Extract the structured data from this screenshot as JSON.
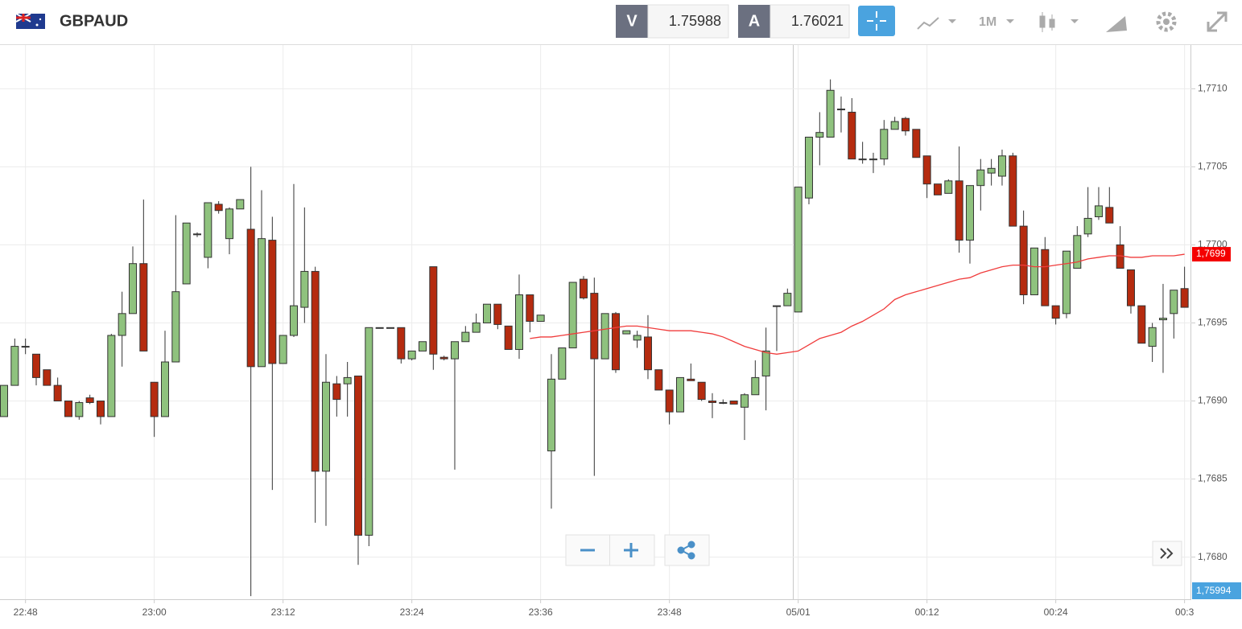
{
  "toolbar": {
    "symbol": "GBPAUD",
    "sell_label": "V",
    "sell_price": "1.75988",
    "buy_label": "A",
    "buy_price": "1.76021",
    "interval": "1M"
  },
  "chart_data": {
    "type": "candlestick",
    "categories": [
      null,
      null,
      "22:48",
      null,
      null,
      null,
      null,
      null,
      null,
      null,
      null,
      null,
      null,
      null,
      "23:00",
      null,
      null,
      null,
      null,
      null,
      null,
      null,
      null,
      null,
      null,
      null,
      "23:12",
      null,
      null,
      null,
      null,
      null,
      null,
      null,
      null,
      null,
      null,
      null,
      "23:24",
      null,
      null,
      null,
      null,
      null,
      null,
      null,
      null,
      null,
      null,
      null,
      "23:36",
      null,
      null,
      null,
      null,
      null,
      null,
      null,
      null,
      null,
      null,
      null,
      "23:48",
      null,
      null,
      null,
      null,
      null,
      null,
      null,
      null,
      null,
      null,
      null,
      "05/01",
      null,
      null,
      null,
      null,
      null,
      null,
      null,
      null,
      null,
      null,
      null,
      "00:12",
      null,
      null,
      null,
      null,
      null,
      null,
      null,
      null,
      null,
      null,
      null,
      "00:24",
      null,
      null,
      null,
      null,
      null,
      null,
      null,
      null,
      null,
      null,
      null,
      "00:3"
    ],
    "open": [
      1.7689,
      1.7691,
      1.76935,
      1.7693,
      1.7692,
      1.7691,
      1.769,
      1.7689,
      1.76902,
      1.769,
      1.7689,
      1.76942,
      1.76956,
      1.76988,
      1.76912,
      1.7689,
      1.76925,
      1.76975,
      1.77007,
      1.76992,
      1.77026,
      1.77004,
      1.77023,
      1.7701,
      1.76922,
      1.77003,
      1.76924,
      1.76942,
      1.7696,
      1.76983,
      1.76855,
      1.76911,
      1.76911,
      1.76916,
      1.76814,
      1.76947,
      1.76947,
      1.76947,
      1.76927,
      1.76932,
      1.76986,
      1.76928,
      1.76927,
      1.76938,
      1.76944,
      1.7695,
      1.76962,
      1.76948,
      1.76933,
      1.76968,
      1.76951,
      1.76868,
      1.76914,
      1.76934,
      1.76978,
      1.76969,
      1.76927,
      1.76956,
      1.76943,
      1.76939,
      1.76941,
      1.7692,
      1.76907,
      1.76893,
      1.76914,
      1.76912,
      1.769,
      1.76899,
      1.769,
      1.76896,
      1.76904,
      1.76916,
      1.76961,
      1.76961,
      1.76957,
      1.7703,
      1.77069,
      1.77069,
      1.77087,
      1.77085,
      1.77055,
      1.77055,
      1.77055,
      1.77074,
      1.77081,
      1.77074,
      1.77057,
      1.77039,
      1.77033,
      1.77041,
      1.77003,
      1.77038,
      1.77046,
      1.77044,
      1.77057,
      1.77012,
      1.76968,
      1.76997,
      1.76961,
      1.76956,
      1.76985,
      1.77007,
      1.77018,
      1.77024,
      1.77,
      1.76984,
      1.76961,
      1.76935,
      1.76952,
      1.76956,
      1.76972
    ],
    "high": [
      1.7691,
      1.7694,
      1.7694,
      1.7693,
      1.7692,
      1.76915,
      1.769,
      1.769,
      1.76904,
      1.769,
      1.76943,
      1.7697,
      1.76999,
      1.77029,
      1.76912,
      1.76945,
      1.77019,
      1.77014,
      1.77008,
      1.77027,
      1.77028,
      1.77024,
      1.77029,
      1.7705,
      1.77035,
      1.77018,
      1.76942,
      1.77039,
      1.77024,
      1.76986,
      1.7693,
      1.76916,
      1.76925,
      1.76916,
      1.76947,
      1.76947,
      1.76947,
      1.76947,
      1.76932,
      1.76938,
      1.76986,
      1.76929,
      1.76938,
      1.76948,
      1.76956,
      1.76962,
      1.76962,
      1.76948,
      1.76981,
      1.76968,
      1.76955,
      1.7693,
      1.76934,
      1.76976,
      1.7698,
      1.76979,
      1.76956,
      1.76957,
      1.76945,
      1.76945,
      1.76955,
      1.7692,
      1.76907,
      1.76915,
      1.76924,
      1.76912,
      1.76905,
      1.76901,
      1.769,
      1.76905,
      1.76926,
      1.76947,
      1.76961,
      1.76972,
      1.77037,
      1.77069,
      1.77085,
      1.77106,
      1.77095,
      1.77094,
      1.77066,
      1.77059,
      1.7708,
      1.77082,
      1.77082,
      1.77074,
      1.77057,
      1.77039,
      1.77042,
      1.77063,
      1.77038,
      1.77055,
      1.77055,
      1.77061,
      1.77059,
      1.77022,
      1.76998,
      1.77005,
      1.76961,
      1.76996,
      1.77012,
      1.77037,
      1.77037,
      1.77037,
      1.77012,
      1.76984,
      1.76961,
      1.7695,
      1.76975,
      1.76971,
      1.76986
    ],
    "low": [
      1.7689,
      1.7691,
      1.7693,
      1.7691,
      1.7691,
      1.769,
      1.7689,
      1.76888,
      1.76898,
      1.76885,
      1.7689,
      1.76922,
      1.76956,
      1.76932,
      1.76877,
      1.7689,
      1.76925,
      1.76975,
      1.77005,
      1.76985,
      1.7702,
      1.76994,
      1.77023,
      1.76775,
      1.76922,
      1.76843,
      1.76924,
      1.76941,
      1.7695,
      1.76822,
      1.7682,
      1.7689,
      1.7689,
      1.76795,
      1.76807,
      1.76947,
      1.76947,
      1.76924,
      1.76926,
      1.76932,
      1.7692,
      1.76926,
      1.76856,
      1.76938,
      1.76944,
      1.7695,
      1.76946,
      1.76933,
      1.76927,
      1.76944,
      1.76951,
      1.76831,
      1.76914,
      1.76934,
      1.76965,
      1.76852,
      1.76927,
      1.76918,
      1.76943,
      1.76934,
      1.76914,
      1.76907,
      1.76885,
      1.76893,
      1.76913,
      1.769,
      1.76889,
      1.76898,
      1.76898,
      1.76875,
      1.76904,
      1.76894,
      1.76932,
      1.76961,
      1.76957,
      1.77026,
      1.77051,
      1.77069,
      1.77072,
      1.77055,
      1.77052,
      1.77046,
      1.77051,
      1.77074,
      1.7707,
      1.77056,
      1.7703,
      1.77032,
      1.77033,
      1.76995,
      1.76988,
      1.77022,
      1.77038,
      1.77038,
      1.77012,
      1.76962,
      1.76968,
      1.76961,
      1.76949,
      1.76953,
      1.76985,
      1.77005,
      1.77016,
      1.77014,
      1.76985,
      1.76956,
      1.76937,
      1.76925,
      1.76918,
      1.7694,
      1.7696
    ],
    "close": [
      1.7691,
      1.76935,
      1.76935,
      1.76915,
      1.7691,
      1.769,
      1.7689,
      1.76899,
      1.76899,
      1.7689,
      1.76942,
      1.76956,
      1.76988,
      1.76932,
      1.7689,
      1.76925,
      1.7697,
      1.77014,
      1.77007,
      1.77027,
      1.77022,
      1.77023,
      1.77029,
      1.76922,
      1.77004,
      1.76924,
      1.76942,
      1.76961,
      1.76983,
      1.76855,
      1.76912,
      1.76901,
      1.76915,
      1.76814,
      1.76947,
      1.76947,
      1.76947,
      1.76927,
      1.76932,
      1.76938,
      1.7693,
      1.76927,
      1.76938,
      1.76944,
      1.7695,
      1.76962,
      1.76949,
      1.76933,
      1.76968,
      1.76951,
      1.76955,
      1.76914,
      1.76934,
      1.76976,
      1.76966,
      1.76927,
      1.76956,
      1.7692,
      1.76945,
      1.76942,
      1.7692,
      1.76907,
      1.76893,
      1.76915,
      1.76913,
      1.76901,
      1.76899,
      1.76899,
      1.76898,
      1.76904,
      1.76915,
      1.76932,
      1.76961,
      1.76969,
      1.77037,
      1.77069,
      1.77072,
      1.77099,
      1.77087,
      1.77055,
      1.77055,
      1.77055,
      1.77074,
      1.77079,
      1.77073,
      1.77056,
      1.77039,
      1.77032,
      1.77041,
      1.77003,
      1.77038,
      1.77048,
      1.77049,
      1.77057,
      1.77012,
      1.76968,
      1.76998,
      1.76961,
      1.76953,
      1.76996,
      1.77006,
      1.77017,
      1.77025,
      1.77014,
      1.76985,
      1.76961,
      1.76937,
      1.76947,
      1.76953,
      1.76971,
      1.7696
    ],
    "up_color": "#8fc27e",
    "down_color": "#b52b0f",
    "moving_average": {
      "color": "#f03c3c",
      "values": [
        null,
        null,
        null,
        null,
        null,
        null,
        null,
        null,
        null,
        null,
        null,
        null,
        null,
        null,
        null,
        null,
        null,
        null,
        null,
        null,
        null,
        null,
        null,
        null,
        null,
        null,
        null,
        null,
        null,
        null,
        null,
        null,
        null,
        null,
        null,
        null,
        null,
        null,
        null,
        null,
        null,
        null,
        null,
        null,
        null,
        null,
        null,
        null,
        null,
        1.7694,
        1.76941,
        1.76941,
        1.76942,
        1.76943,
        1.76944,
        1.76945,
        1.76946,
        1.76947,
        1.76948,
        1.76948,
        1.76947,
        1.76946,
        1.76945,
        1.76945,
        1.76945,
        1.76944,
        1.76943,
        1.76941,
        1.76938,
        1.76935,
        1.76933,
        1.76931,
        1.7693,
        1.76931,
        1.76932,
        1.76936,
        1.7694,
        1.76942,
        1.76944,
        1.76948,
        1.76951,
        1.76955,
        1.76959,
        1.76965,
        1.76968,
        1.7697,
        1.76972,
        1.76974,
        1.76976,
        1.76978,
        1.76979,
        1.76982,
        1.76984,
        1.76986,
        1.76987,
        1.76987,
        1.76986,
        1.76986,
        1.76987,
        1.76988,
        1.76989,
        1.76991,
        1.76992,
        1.76993,
        1.76993,
        1.76992,
        1.76992,
        1.76993,
        1.76993,
        1.76993,
        1.76994
      ],
      "tag": "1,7699"
    },
    "cursor_tag": "1,75994",
    "ylim": [
      1.76773,
      1.77128
    ],
    "yticks": [
      {
        "value": 1.768,
        "label": "1,7680"
      },
      {
        "value": 1.7685,
        "label": "1,7685"
      },
      {
        "value": 1.769,
        "label": "1,7690"
      },
      {
        "value": 1.7695,
        "label": "1,7695"
      },
      {
        "value": 1.77,
        "label": "1,7700"
      },
      {
        "value": 1.7705,
        "label": "1,7705"
      },
      {
        "value": 1.771,
        "label": "1,7710"
      }
    ],
    "grid": true
  }
}
